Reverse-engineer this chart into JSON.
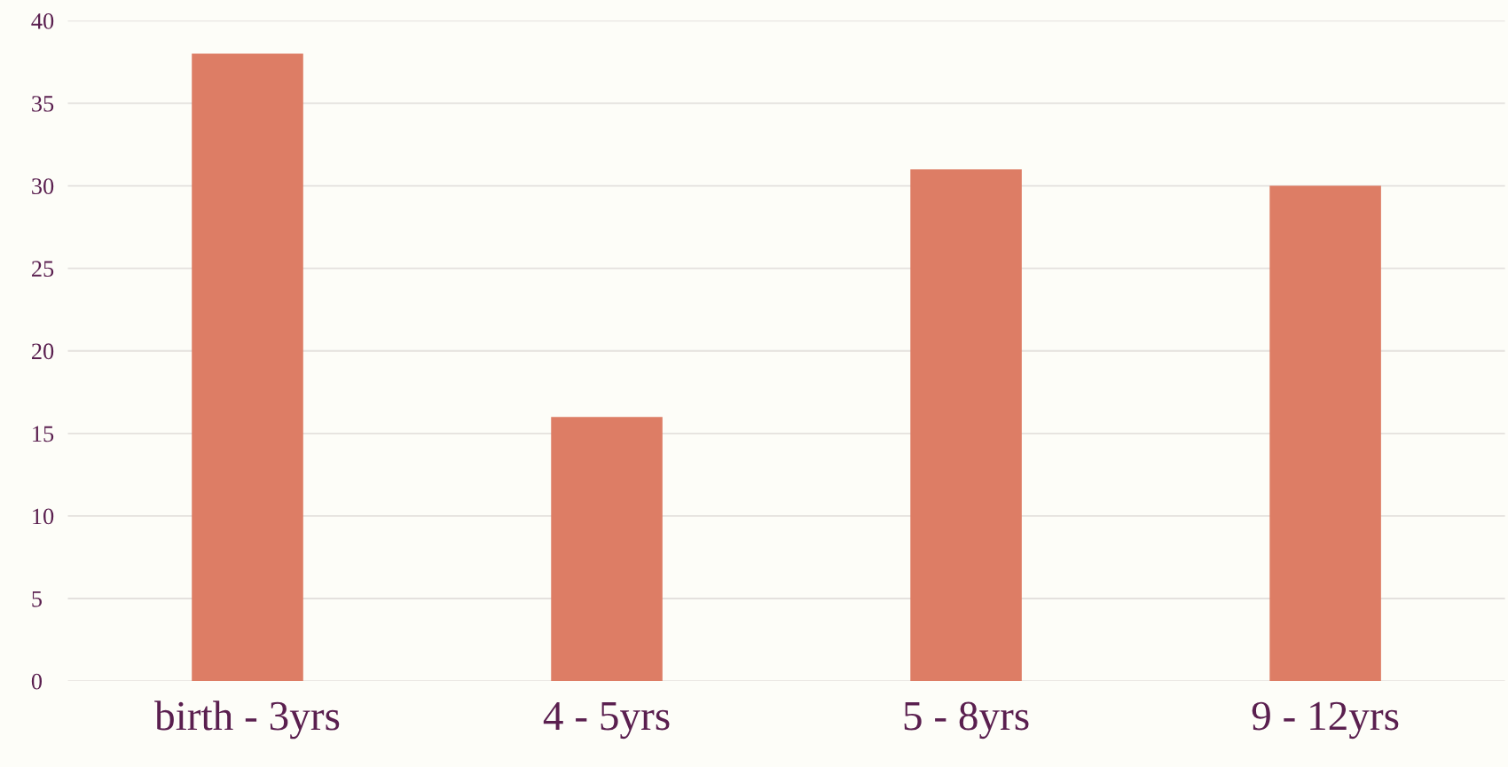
{
  "chart_data": {
    "type": "bar",
    "categories": [
      "birth - 3yrs",
      "4 - 5yrs",
      "5 - 8yrs",
      "9 - 12yrs"
    ],
    "values": [
      38,
      16,
      31,
      30
    ],
    "color": "#dd7d65",
    "ylim": [
      0,
      40
    ],
    "yticks": [
      0,
      5,
      10,
      15,
      20,
      25,
      30,
      35,
      40
    ],
    "grid": "y"
  }
}
